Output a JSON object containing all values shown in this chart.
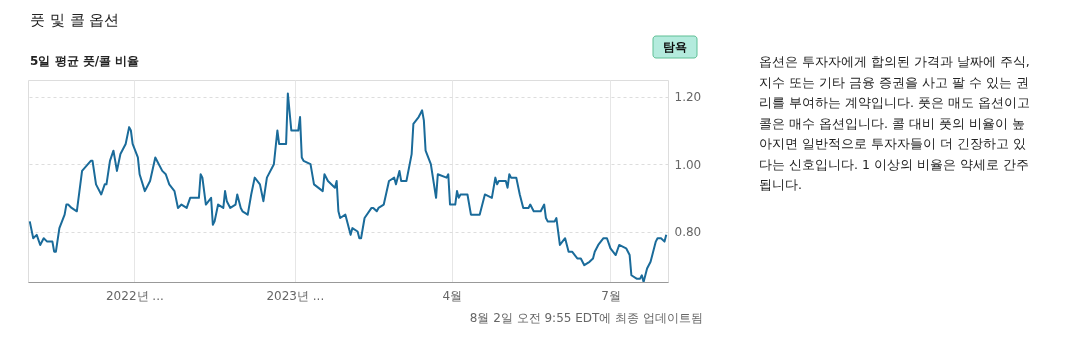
{
  "chart_data": {
    "type": "line",
    "title": "풋 및 콜 옵션",
    "subtitle": "5일 평균 풋/콜 비율",
    "annotations": [
      "탐욕",
      "옵션은 투자자에게 합의된 가격과 날짜에 주식,\n지수 또는 기타 금융 증권을 사고 팔 수 있는 권\n리를 부여하는 계약입니다. 풋은 매도 옵션이고\n콜은 매수 옵션입니다. 콜 대비 풋의 비율이 높\n아지면 일반적으로 투자자들이 더 긴장하고 있\n다는 신호입니다. 1 이상의 비율은 약세로 간주\n됩니다.",
      "8월 2일 오전 9:55 EDT에 최종 업데이트됨"
    ],
    "x": [
      "2022-08-02",
      "2022-08-04",
      "2022-08-06",
      "2022-08-08",
      "2022-08-10",
      "2022-08-12",
      "2022-08-15",
      "2022-08-16",
      "2022-08-17",
      "2022-08-19",
      "2022-08-22",
      "2022-08-23",
      "2022-08-24",
      "2022-08-26",
      "2022-08-29",
      "2022-09-01",
      "2022-09-06",
      "2022-09-07",
      "2022-09-09",
      "2022-09-12",
      "2022-09-14",
      "2022-09-15",
      "2022-09-17",
      "2022-09-19",
      "2022-09-21",
      "2022-09-23",
      "2022-09-26",
      "2022-09-28",
      "2022-09-29",
      "2022-09-30",
      "2022-10-03",
      "2022-10-04",
      "2022-10-07",
      "2022-10-10",
      "2022-10-13",
      "2022-10-15",
      "2022-10-17",
      "2022-10-19",
      "2022-10-21",
      "2022-10-24",
      "2022-10-26",
      "2022-10-28",
      "2022-10-31",
      "2022-11-02",
      "2022-11-04",
      "2022-11-07",
      "2022-11-08",
      "2022-11-09",
      "2022-11-11",
      "2022-11-14",
      "2022-11-15",
      "2022-11-16",
      "2022-11-18",
      "2022-11-21",
      "2022-11-22",
      "2022-11-23",
      "2022-11-25",
      "2022-11-28",
      "2022-11-29",
      "2022-12-01",
      "2022-12-02",
      "2022-12-05",
      "2022-12-07",
      "2022-12-09",
      "2022-12-12",
      "2022-12-14",
      "2022-12-16",
      "2022-12-20",
      "2022-12-22",
      "2022-12-23",
      "2022-12-27",
      "2022-12-28",
      "2022-12-30",
      "2023-01-03",
      "2023-01-04",
      "2023-01-05",
      "2023-01-06",
      "2023-01-10",
      "2023-01-12",
      "2023-01-17",
      "2023-01-18",
      "2023-01-20",
      "2023-01-24",
      "2023-01-25",
      "2023-01-26",
      "2023-01-27",
      "2023-01-30",
      "2023-02-02",
      "2023-02-03",
      "2023-02-06",
      "2023-02-07",
      "2023-02-08",
      "2023-02-10",
      "2023-02-14",
      "2023-02-15",
      "2023-02-17",
      "2023-02-18",
      "2023-02-21",
      "2023-02-24",
      "2023-02-27",
      "2023-02-28",
      "2023-03-02",
      "2023-03-03",
      "2023-03-06",
      "2023-03-09",
      "2023-03-10",
      "2023-03-13",
      "2023-03-14",
      "2023-03-15",
      "2023-03-16",
      "2023-03-17",
      "2023-03-20",
      "2023-03-23",
      "2023-03-24",
      "2023-03-29",
      "2023-03-30",
      "2023-03-31",
      "2023-04-03",
      "2023-04-04",
      "2023-04-05",
      "2023-04-06",
      "2023-04-10",
      "2023-04-12",
      "2023-04-14",
      "2023-04-17",
      "2023-04-20",
      "2023-04-24",
      "2023-04-26",
      "2023-04-27",
      "2023-04-28",
      "2023-05-02",
      "2023-05-03",
      "2023-05-04",
      "2023-05-05",
      "2023-05-08",
      "2023-05-10",
      "2023-05-12",
      "2023-05-15",
      "2023-05-16",
      "2023-05-18",
      "2023-05-22",
      "2023-05-24",
      "2023-05-25",
      "2023-05-26",
      "2023-05-30",
      "2023-05-31",
      "2023-06-02",
      "2023-06-05",
      "2023-06-07",
      "2023-06-09",
      "2023-06-12",
      "2023-06-14",
      "2023-06-16",
      "2023-06-19",
      "2023-06-21",
      "2023-06-22",
      "2023-06-24",
      "2023-06-27",
      "2023-06-29",
      "2023-07-01",
      "2023-07-04",
      "2023-07-06",
      "2023-07-10",
      "2023-07-12",
      "2023-07-13",
      "2023-07-16",
      "2023-07-18",
      "2023-07-19",
      "2023-07-20",
      "2023-07-22",
      "2023-07-24",
      "2023-07-27",
      "2023-07-28",
      "2023-07-30",
      "2023-08-01",
      "2023-08-02"
    ],
    "series": [
      {
        "color": "#1a6b9a",
        "values": [
          0.83,
          0.78,
          0.79,
          0.76,
          0.78,
          0.77,
          0.77,
          0.74,
          0.74,
          0.81,
          0.85,
          0.88,
          0.88,
          0.87,
          0.86,
          0.98,
          1.01,
          1.01,
          0.94,
          0.91,
          0.94,
          0.94,
          1.01,
          1.04,
          0.98,
          1.03,
          1.06,
          1.11,
          1.1,
          1.06,
          1.02,
          0.97,
          0.92,
          0.95,
          1.02,
          1.0,
          0.98,
          0.97,
          0.94,
          0.92,
          0.87,
          0.88,
          0.87,
          0.9,
          0.9,
          0.9,
          0.97,
          0.96,
          0.88,
          0.9,
          0.82,
          0.83,
          0.88,
          0.87,
          0.92,
          0.89,
          0.87,
          0.88,
          0.91,
          0.87,
          0.86,
          0.85,
          0.91,
          0.96,
          0.94,
          0.89,
          0.96,
          1.0,
          1.1,
          1.06,
          1.06,
          1.21,
          1.1,
          1.1,
          1.14,
          1.02,
          1.01,
          1.0,
          0.94,
          0.92,
          0.97,
          0.95,
          0.93,
          0.95,
          0.86,
          0.84,
          0.85,
          0.79,
          0.81,
          0.8,
          0.78,
          0.78,
          0.84,
          0.87,
          0.87,
          0.86,
          0.87,
          0.88,
          0.95,
          0.96,
          0.94,
          0.98,
          0.95,
          0.95,
          1.03,
          1.12,
          1.14,
          1.15,
          1.16,
          1.13,
          1.04,
          1.0,
          0.9,
          0.97,
          0.96,
          0.97,
          0.88,
          0.88,
          0.92,
          0.9,
          0.91,
          0.91,
          0.85,
          0.85,
          0.85,
          0.91,
          0.9,
          0.96,
          0.94,
          0.95,
          0.95,
          0.93,
          0.97,
          0.96,
          0.96,
          0.91,
          0.87,
          0.87,
          0.88,
          0.86,
          0.86,
          0.88,
          0.84,
          0.83,
          0.83,
          0.84,
          0.76,
          0.78,
          0.74,
          0.74,
          0.72,
          0.72,
          0.7,
          0.71,
          0.72,
          0.74,
          0.76,
          0.78,
          0.78,
          0.75,
          0.73,
          0.76,
          0.75,
          0.73,
          0.67,
          0.66,
          0.66,
          0.67,
          0.65,
          0.69,
          0.71,
          0.77,
          0.78,
          0.78,
          0.77,
          0.79
        ]
      }
    ],
    "xlim": [
      "2022-08-01",
      "2023-08-03"
    ],
    "xticks": [
      {
        "value": "2022-10-01",
        "label": "2022년 ..."
      },
      {
        "value": "2023-01-01",
        "label": "2023년 ..."
      },
      {
        "value": "2023-04-01",
        "label": "4월"
      },
      {
        "value": "2023-07-01",
        "label": "7월"
      }
    ],
    "ylim": [
      0.65,
      1.25
    ],
    "yticks": [
      {
        "value": 0.8,
        "label": "0.80"
      },
      {
        "value": 1.0,
        "label": "1.00"
      },
      {
        "value": 1.2,
        "label": "1.20"
      }
    ],
    "grid": true
  }
}
